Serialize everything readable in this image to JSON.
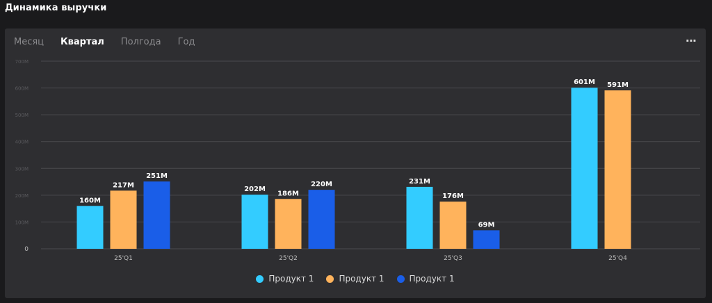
{
  "page": {
    "title": "Динамика выручки"
  },
  "tabs": [
    {
      "label": "Месяц",
      "active": false
    },
    {
      "label": "Квартал",
      "active": true
    },
    {
      "label": "Полгода",
      "active": false
    },
    {
      "label": "Год",
      "active": false
    }
  ],
  "menu": {
    "more_label": "···"
  },
  "chart_data": {
    "type": "bar",
    "title": "Динамика выручки",
    "categories": [
      "25'Q1",
      "25'Q2",
      "25'Q3",
      "25'Q4"
    ],
    "series": [
      {
        "name": "Продукт 1",
        "color": "#33ccff",
        "values": [
          160,
          202,
          231,
          601
        ],
        "labels": [
          "160M",
          "202M",
          "231M",
          "601M"
        ]
      },
      {
        "name": "Продукт 1",
        "color": "#ffb35c",
        "values": [
          217,
          186,
          176,
          591
        ],
        "labels": [
          "217M",
          "186M",
          "176M",
          "591M"
        ]
      },
      {
        "name": "Продукт 1",
        "color": "#1a5ee8",
        "values": [
          251,
          220,
          69,
          null
        ],
        "labels": [
          "251M",
          "220M",
          "69M",
          ""
        ]
      }
    ],
    "y_ticks": [
      0,
      100,
      200,
      300,
      400,
      500,
      600,
      700
    ],
    "y_tick_labels": [
      "0",
      "100M",
      "200M",
      "300M",
      "400M",
      "500M",
      "600M",
      "700M"
    ],
    "ylim": [
      0,
      700
    ],
    "xlabel": "",
    "ylabel": "",
    "grid": true,
    "legend_position": "bottom-center"
  },
  "colors": {
    "grid": "#4a4a4e",
    "axis_text": "#bdbdbd",
    "label_text": "#ffffff"
  }
}
